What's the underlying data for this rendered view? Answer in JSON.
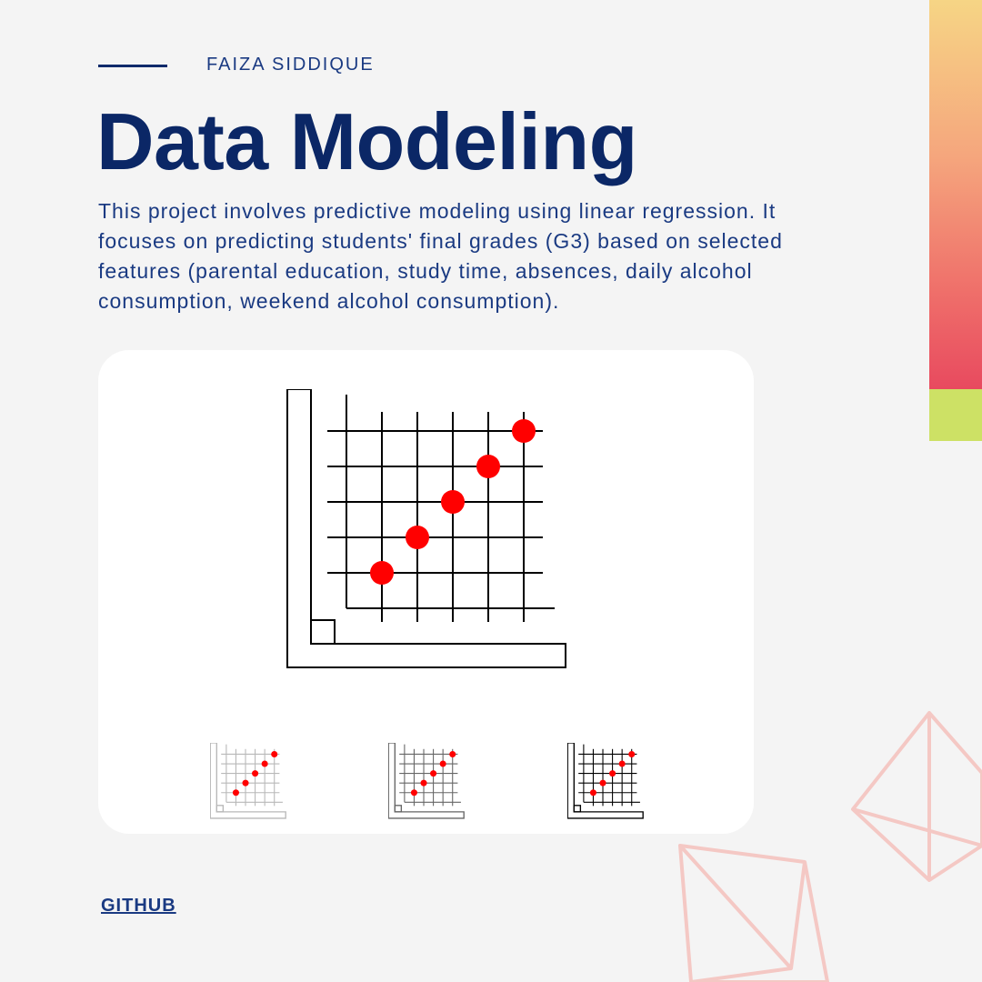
{
  "author": "FAIZA SIDDIQUE",
  "title": "Data Modeling",
  "description": "This project involves predictive modeling using linear regression. It focuses on predicting students' final grades (G3) based on selected features (parental education, study time, absences, daily alcohol consumption, weekend alcohol consumption).",
  "link_label": "GITHUB",
  "colors": {
    "title": "#0b2766",
    "text": "#1a3a82",
    "point": "#ff0000",
    "gradient": [
      "#f6d585",
      "#f5a67d",
      "#ef6f6a",
      "#e84a5f"
    ],
    "accent_lime": "#cde165",
    "crystal_stroke": "#f4c8c4"
  },
  "icons": {
    "main": "scatter-plot-icon",
    "thumbnails": [
      "scatter-plot-icon-light",
      "scatter-plot-icon-medium",
      "scatter-plot-icon-dark"
    ]
  }
}
